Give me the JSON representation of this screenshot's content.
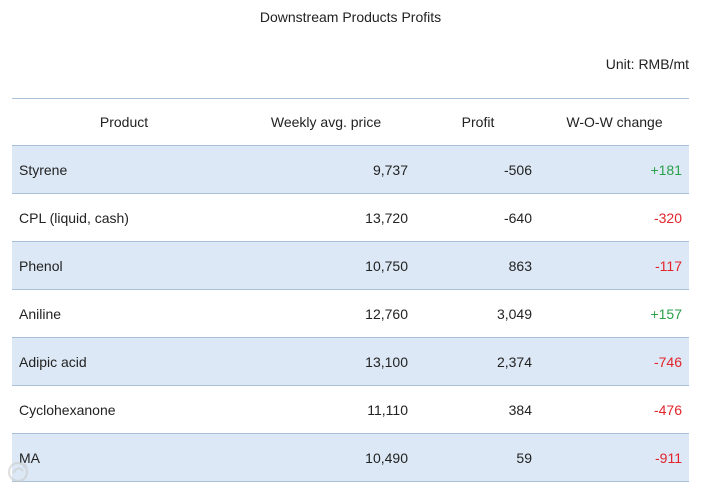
{
  "chart_data": {
    "type": "table",
    "title": "Downstream Products Profits",
    "unit": "Unit: RMB/mt",
    "columns": [
      "Product",
      "Weekly avg. price",
      "Profit",
      "W-O-W change"
    ],
    "rows": [
      {
        "product": "Styrene",
        "weekly_avg_price": 9737,
        "profit": -506,
        "wow_change": 181
      },
      {
        "product": "CPL (liquid, cash)",
        "weekly_avg_price": 13720,
        "profit": -640,
        "wow_change": -320
      },
      {
        "product": "Phenol",
        "weekly_avg_price": 10750,
        "profit": 863,
        "wow_change": -117
      },
      {
        "product": "Aniline",
        "weekly_avg_price": 12760,
        "profit": 3049,
        "wow_change": 157
      },
      {
        "product": "Adipic acid",
        "weekly_avg_price": 13100,
        "profit": 2374,
        "wow_change": -746
      },
      {
        "product": "Cyclohexanone",
        "weekly_avg_price": 11110,
        "profit": 384,
        "wow_change": -476
      },
      {
        "product": "MA",
        "weekly_avg_price": 10490,
        "profit": 59,
        "wow_change": -911
      }
    ]
  },
  "colors": {
    "text": "#222222",
    "row_stripe": "#dce8f5",
    "border": "#a9c1db",
    "positive_change": "#2aa14b",
    "negative_change": "#e3242b"
  },
  "watermark": {
    "text": "大数跨境",
    "icon": "watermark-logo-icon"
  }
}
